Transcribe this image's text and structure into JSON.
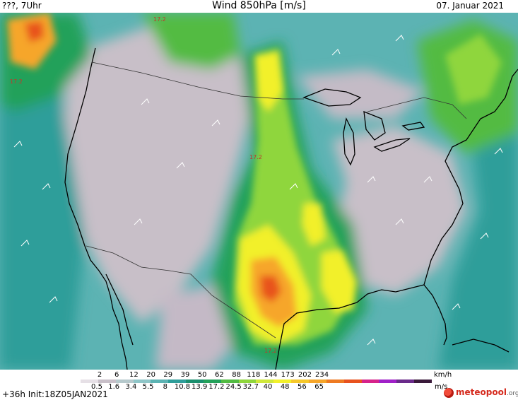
{
  "header": {
    "left": "???, 7Uhr",
    "title": "Wind 850hPa [m/s]",
    "date": "07. Januar 2021"
  },
  "map": {
    "contour_labels": [
      "17.2",
      "17.2",
      "17.2",
      "17.2"
    ],
    "colors": {
      "calm": "#c8bfc8",
      "light": "#8fc6c8",
      "moderate": "#2f9e9a",
      "fresh": "#23a15a",
      "strong": "#8fd63c",
      "very_strong": "#f2f02a",
      "gale": "#f6a62a",
      "storm": "#e8521e",
      "coastline": "#000000",
      "border": "#333333"
    }
  },
  "legend": {
    "kmh_ticks": [
      "2",
      "6",
      "12",
      "20",
      "29",
      "39",
      "50",
      "62",
      "88",
      "118",
      "144",
      "173",
      "202",
      "234"
    ],
    "kmh_unit": "km/h",
    "ms_ticks": [
      "0.5",
      "1.6",
      "3.4",
      "5.5",
      "8",
      "10.8",
      "13.9",
      "17.2",
      "24.5",
      "32.7",
      "40",
      "48",
      "56",
      "65"
    ],
    "ms_unit": "m/s",
    "colors": [
      "#e6e0e6",
      "#c8bfc8",
      "#b6c9cc",
      "#8fc6c8",
      "#5cb3b3",
      "#2f9e9a",
      "#1b8f6e",
      "#23a15a",
      "#52bb42",
      "#8fd63c",
      "#d0e83a",
      "#f2f02a",
      "#f6c82a",
      "#f6a62a",
      "#ee7a22",
      "#e8521e",
      "#d6238a",
      "#a020c8",
      "#6a2a8a",
      "#3a1a3a"
    ]
  },
  "footer": {
    "init": "+36h Init:18Z05JAN2021",
    "logo_name": "meteopool",
    "logo_tld": ".org"
  }
}
